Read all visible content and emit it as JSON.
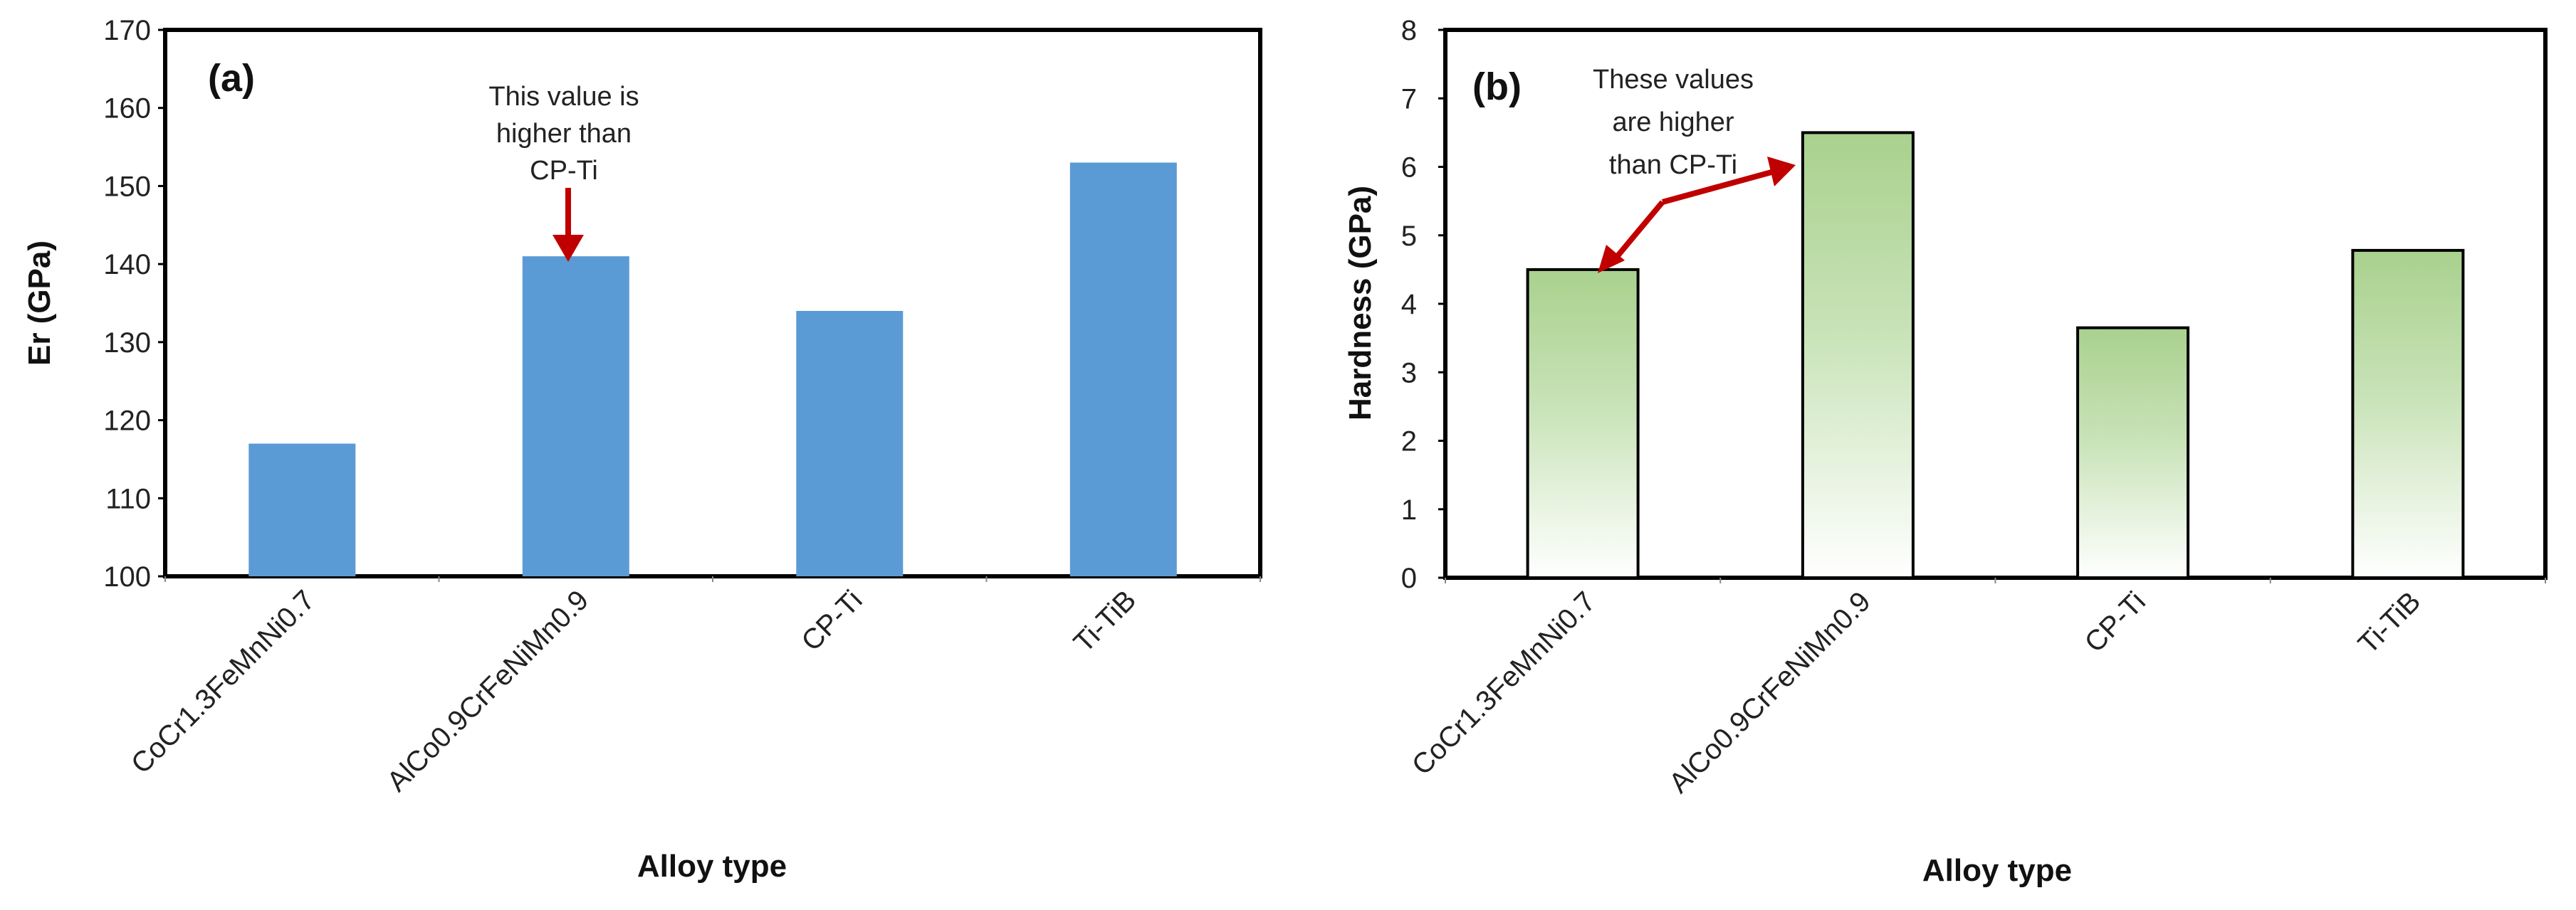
{
  "colors": {
    "bar_a": "#5B9BD5",
    "bar_b_top": "#A9D18E",
    "bar_b_bottom": "#FFFFFF",
    "bar_b_edge": "#000000",
    "arrow": "#C00000",
    "axis": "#000000"
  },
  "chart_data": [
    {
      "id": "a",
      "type": "bar",
      "panel_label": "(a)",
      "xlabel": "Alloy type",
      "ylabel": "Er (GPa)",
      "ylim": [
        100,
        170
      ],
      "yticks": [
        100,
        110,
        120,
        130,
        140,
        150,
        160,
        170
      ],
      "grid": false,
      "categories": [
        "CoCr1.3FeMnNi0.7",
        "AlCo0.9CrFeNiMn0.9",
        "CP-Ti",
        "Ti-TiB"
      ],
      "values": [
        117,
        141,
        134,
        153
      ],
      "annotation": {
        "lines": [
          "This value is",
          "higher than",
          "CP-Ti"
        ],
        "points_to": [
          "AlCo0.9CrFeNiMn0.9"
        ]
      }
    },
    {
      "id": "b",
      "type": "bar",
      "panel_label": "(b)",
      "xlabel": "Alloy type",
      "ylabel": "Hardness (GPa)",
      "ylim": [
        0,
        8
      ],
      "yticks": [
        0,
        1,
        2,
        3,
        4,
        5,
        6,
        7,
        8
      ],
      "grid": false,
      "categories": [
        "CoCr1.3FeMnNi0.7",
        "AlCo0.9CrFeNiMn0.9",
        "CP-Ti",
        "Ti-TiB"
      ],
      "values": [
        4.5,
        6.5,
        3.65,
        4.78
      ],
      "annotation": {
        "lines": [
          "These values",
          "are higher",
          "than CP-Ti"
        ],
        "points_to": [
          "CoCr1.3FeMnNi0.7",
          "AlCo0.9CrFeNiMn0.9"
        ]
      }
    }
  ]
}
